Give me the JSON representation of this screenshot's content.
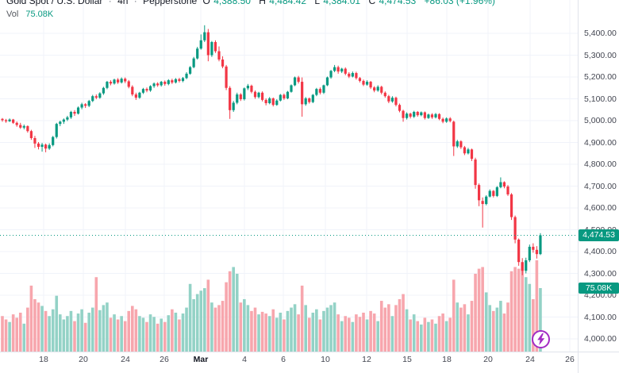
{
  "header": {
    "symbol": "Gold Spot / U.S. Dollar",
    "separator": "·",
    "timeframe": "4h",
    "exchange": "Pepperstone",
    "ohlc": {
      "o_label": "O",
      "o": "4,388.50",
      "h_label": "H",
      "h": "4,484.42",
      "l_label": "L",
      "l": "4,384.01",
      "c_label": "C",
      "c": "4,474.53"
    },
    "change": "+86.03 (+1.96%)"
  },
  "indicator": {
    "label": "Vol",
    "value": "75.08K"
  },
  "badges": {
    "price": "4,474.53",
    "volume": "75.08K"
  },
  "icons": {
    "bolt": "lightning-icon"
  },
  "colors": {
    "up": "#089981",
    "down": "#f23645",
    "vol_up": "#93d2c6",
    "vol_down": "#f7a6ad",
    "grid": "#f0f3fa",
    "axis_border": "#e0e3eb",
    "axis_text": "#434651",
    "badge_bg": "#089981",
    "badge_text": "#ffffff",
    "price_line": "#089981",
    "icon_purple": "#a32cc4"
  },
  "chart_data": {
    "type": "candlestick",
    "title": "Gold Spot / U.S. Dollar",
    "timeframe": "4h",
    "exchange": "Pepperstone",
    "last_price": 4474.53,
    "last_volume_k": 75.08,
    "grid": true,
    "y_axis": {
      "min": 4000,
      "max": 5400,
      "step": 100,
      "tick_labels": [
        "5,400.00",
        "5,300.00",
        "5,200.00",
        "5,100.00",
        "5,000.00",
        "4,900.00",
        "4,800.00",
        "4,700.00",
        "4,600.00",
        "4,500.00",
        "4,400.00",
        "4,300.00",
        "4,200.00",
        "4,100.00",
        "4,000.00"
      ]
    },
    "x_axis": {
      "tick_labels": [
        "18",
        "20",
        "24",
        "26",
        "Mar",
        "4",
        "6",
        "10",
        "12",
        "15",
        "18",
        "20",
        "24",
        "26"
      ],
      "tick_x": [
        55,
        105,
        158,
        207,
        253,
        308,
        357,
        410,
        462,
        513,
        563,
        615,
        668,
        718
      ],
      "bold_index": 4
    },
    "series_format": [
      "open",
      "high",
      "low",
      "close",
      "volume_k"
    ],
    "candles": [
      [
        5008,
        5012,
        4995,
        5002,
        42
      ],
      [
        5002,
        5008,
        4990,
        4997,
        38
      ],
      [
        4997,
        5010,
        4994,
        5005,
        35
      ],
      [
        5005,
        5008,
        4985,
        4990,
        44
      ],
      [
        4990,
        4996,
        4972,
        4980,
        40
      ],
      [
        4980,
        4990,
        4962,
        4968,
        46
      ],
      [
        4968,
        4982,
        4960,
        4975,
        33
      ],
      [
        4975,
        4978,
        4945,
        4952,
        52
      ],
      [
        4952,
        4958,
        4912,
        4920,
        78
      ],
      [
        4920,
        4930,
        4875,
        4895,
        62
      ],
      [
        4895,
        4902,
        4868,
        4880,
        58
      ],
      [
        4880,
        4898,
        4858,
        4890,
        54
      ],
      [
        4890,
        4895,
        4855,
        4872,
        48
      ],
      [
        4872,
        4896,
        4866,
        4888,
        42
      ],
      [
        4888,
        4930,
        4882,
        4925,
        50
      ],
      [
        4925,
        4990,
        4918,
        4985,
        66
      ],
      [
        4985,
        5000,
        4975,
        4995,
        44
      ],
      [
        4995,
        5010,
        4985,
        5005,
        38
      ],
      [
        5005,
        5022,
        4998,
        5015,
        42
      ],
      [
        5015,
        5045,
        5008,
        5040,
        48
      ],
      [
        5040,
        5048,
        5022,
        5032,
        36
      ],
      [
        5032,
        5065,
        5028,
        5060,
        45
      ],
      [
        5060,
        5082,
        5052,
        5075,
        50
      ],
      [
        5075,
        5080,
        5058,
        5068,
        34
      ],
      [
        5068,
        5095,
        5062,
        5090,
        46
      ],
      [
        5090,
        5118,
        5085,
        5112,
        52
      ],
      [
        5112,
        5120,
        5098,
        5105,
        88
      ],
      [
        5105,
        5130,
        5100,
        5125,
        49
      ],
      [
        5125,
        5155,
        5118,
        5150,
        55
      ],
      [
        5150,
        5182,
        5144,
        5178,
        58
      ],
      [
        5178,
        5185,
        5162,
        5170,
        40
      ],
      [
        5170,
        5192,
        5165,
        5188,
        44
      ],
      [
        5188,
        5195,
        5168,
        5175,
        38
      ],
      [
        5175,
        5198,
        5170,
        5192,
        42
      ],
      [
        5192,
        5198,
        5172,
        5180,
        36
      ],
      [
        5180,
        5186,
        5148,
        5155,
        48
      ],
      [
        5155,
        5162,
        5112,
        5120,
        54
      ],
      [
        5120,
        5128,
        5095,
        5105,
        50
      ],
      [
        5105,
        5132,
        5100,
        5128,
        42
      ],
      [
        5128,
        5150,
        5122,
        5145,
        40
      ],
      [
        5145,
        5152,
        5130,
        5138,
        35
      ],
      [
        5138,
        5162,
        5132,
        5158,
        44
      ],
      [
        5158,
        5175,
        5150,
        5170,
        41
      ],
      [
        5170,
        5176,
        5155,
        5162,
        33
      ],
      [
        5162,
        5182,
        5156,
        5178,
        39
      ],
      [
        5178,
        5184,
        5160,
        5168,
        35
      ],
      [
        5168,
        5190,
        5162,
        5185,
        43
      ],
      [
        5185,
        5192,
        5168,
        5175,
        50
      ],
      [
        5175,
        5195,
        5170,
        5190,
        46
      ],
      [
        5190,
        5196,
        5175,
        5182,
        38
      ],
      [
        5182,
        5200,
        5176,
        5195,
        45
      ],
      [
        5195,
        5222,
        5190,
        5215,
        52
      ],
      [
        5215,
        5250,
        5210,
        5245,
        80
      ],
      [
        5245,
        5292,
        5240,
        5285,
        62
      ],
      [
        5285,
        5338,
        5280,
        5330,
        68
      ],
      [
        5330,
        5395,
        5325,
        5368,
        72
      ],
      [
        5368,
        5437,
        5360,
        5405,
        75
      ],
      [
        5405,
        5420,
        5272,
        5300,
        85
      ],
      [
        5300,
        5365,
        5292,
        5360,
        58
      ],
      [
        5360,
        5368,
        5310,
        5318,
        52
      ],
      [
        5318,
        5340,
        5272,
        5280,
        55
      ],
      [
        5280,
        5295,
        5240,
        5248,
        60
      ],
      [
        5248,
        5255,
        5140,
        5150,
        82
      ],
      [
        5150,
        5158,
        5008,
        5048,
        95
      ],
      [
        5048,
        5090,
        5040,
        5082,
        100
      ],
      [
        5082,
        5128,
        5075,
        5120,
        92
      ],
      [
        5120,
        5126,
        5090,
        5098,
        58
      ],
      [
        5098,
        5152,
        5092,
        5148,
        62
      ],
      [
        5148,
        5168,
        5140,
        5160,
        55
      ],
      [
        5160,
        5165,
        5125,
        5132,
        48
      ],
      [
        5132,
        5138,
        5100,
        5108,
        52
      ],
      [
        5108,
        5132,
        5102,
        5128,
        44
      ],
      [
        5128,
        5134,
        5088,
        5095,
        47
      ],
      [
        5095,
        5102,
        5070,
        5080,
        45
      ],
      [
        5080,
        5108,
        5075,
        5102,
        42
      ],
      [
        5102,
        5106,
        5065,
        5072,
        50
      ],
      [
        5072,
        5098,
        5068,
        5092,
        40
      ],
      [
        5092,
        5122,
        5088,
        5118,
        46
      ],
      [
        5118,
        5124,
        5095,
        5102,
        38
      ],
      [
        5102,
        5136,
        5098,
        5132,
        48
      ],
      [
        5132,
        5166,
        5128,
        5162,
        52
      ],
      [
        5162,
        5202,
        5158,
        5198,
        56
      ],
      [
        5198,
        5205,
        5170,
        5178,
        44
      ],
      [
        5178,
        5198,
        5018,
        5075,
        78
      ],
      [
        5075,
        5108,
        5068,
        5102,
        55
      ],
      [
        5102,
        5106,
        5078,
        5085,
        40
      ],
      [
        5085,
        5122,
        5080,
        5118,
        46
      ],
      [
        5118,
        5150,
        5112,
        5145,
        50
      ],
      [
        5145,
        5152,
        5120,
        5128,
        38
      ],
      [
        5128,
        5165,
        5122,
        5162,
        48
      ],
      [
        5162,
        5202,
        5158,
        5198,
        52
      ],
      [
        5198,
        5232,
        5192,
        5228,
        55
      ],
      [
        5228,
        5255,
        5222,
        5245,
        58
      ],
      [
        5245,
        5252,
        5215,
        5225,
        44
      ],
      [
        5225,
        5242,
        5218,
        5238,
        36
      ],
      [
        5238,
        5244,
        5208,
        5215,
        42
      ],
      [
        5215,
        5222,
        5195,
        5202,
        40
      ],
      [
        5202,
        5225,
        5198,
        5218,
        35
      ],
      [
        5218,
        5224,
        5188,
        5195,
        44
      ],
      [
        5195,
        5200,
        5175,
        5182,
        41
      ],
      [
        5182,
        5188,
        5158,
        5165,
        46
      ],
      [
        5165,
        5185,
        5160,
        5178,
        38
      ],
      [
        5178,
        5182,
        5145,
        5152,
        48
      ],
      [
        5152,
        5158,
        5130,
        5138,
        45
      ],
      [
        5138,
        5162,
        5132,
        5155,
        36
      ],
      [
        5155,
        5160,
        5120,
        5128,
        60
      ],
      [
        5128,
        5134,
        5105,
        5112,
        52
      ],
      [
        5112,
        5118,
        5080,
        5088,
        56
      ],
      [
        5088,
        5112,
        5082,
        5105,
        42
      ],
      [
        5105,
        5110,
        5065,
        5072,
        55
      ],
      [
        5072,
        5078,
        5038,
        5045,
        62
      ],
      [
        5045,
        5050,
        4995,
        5012,
        68
      ],
      [
        5012,
        5038,
        5005,
        5032,
        50
      ],
      [
        5032,
        5036,
        5010,
        5018,
        38
      ],
      [
        5018,
        5045,
        5012,
        5040,
        44
      ],
      [
        5040,
        5044,
        5018,
        5025,
        36
      ],
      [
        5025,
        5042,
        5020,
        5038,
        32
      ],
      [
        5038,
        5042,
        5005,
        5012,
        40
      ],
      [
        5012,
        5032,
        5008,
        5028,
        35
      ],
      [
        5028,
        5034,
        5008,
        5015,
        38
      ],
      [
        5015,
        5035,
        5010,
        5030,
        33
      ],
      [
        5030,
        5034,
        5002,
        5008,
        42
      ],
      [
        5008,
        5014,
        4988,
        4995,
        45
      ],
      [
        4995,
        5015,
        4990,
        5010,
        36
      ],
      [
        5010,
        5016,
        4992,
        4998,
        40
      ],
      [
        4995,
        5000,
        4838,
        4882,
        85
      ],
      [
        4882,
        4912,
        4875,
        4905,
        58
      ],
      [
        4905,
        4910,
        4870,
        4878,
        52
      ],
      [
        4878,
        4884,
        4842,
        4850,
        56
      ],
      [
        4850,
        4875,
        4845,
        4868,
        44
      ],
      [
        4868,
        4872,
        4815,
        4825,
        60
      ],
      [
        4822,
        4830,
        4688,
        4705,
        92
      ],
      [
        4705,
        4712,
        4608,
        4635,
        98
      ],
      [
        4632,
        4648,
        4510,
        4618,
        100
      ],
      [
        4618,
        4658,
        4612,
        4652,
        70
      ],
      [
        4652,
        4685,
        4648,
        4678,
        55
      ],
      [
        4678,
        4682,
        4648,
        4655,
        48
      ],
      [
        4655,
        4700,
        4650,
        4695,
        52
      ],
      [
        4695,
        4740,
        4690,
        4718,
        60
      ],
      [
        4718,
        4722,
        4690,
        4698,
        45
      ],
      [
        4698,
        4705,
        4655,
        4662,
        58
      ],
      [
        4662,
        4668,
        4545,
        4558,
        95
      ],
      [
        4558,
        4565,
        4438,
        4455,
        100
      ],
      [
        4455,
        4460,
        4335,
        4352,
        98
      ],
      [
        4352,
        4370,
        4292,
        4312,
        105
      ],
      [
        4312,
        4372,
        4300,
        4360,
        88
      ],
      [
        4360,
        4432,
        4352,
        4422,
        80
      ],
      [
        4422,
        4438,
        4395,
        4408,
        62
      ],
      [
        4408,
        4425,
        4368,
        4388.5,
        108
      ],
      [
        4388.5,
        4484.42,
        4384.01,
        4474.53,
        75.08
      ]
    ]
  }
}
